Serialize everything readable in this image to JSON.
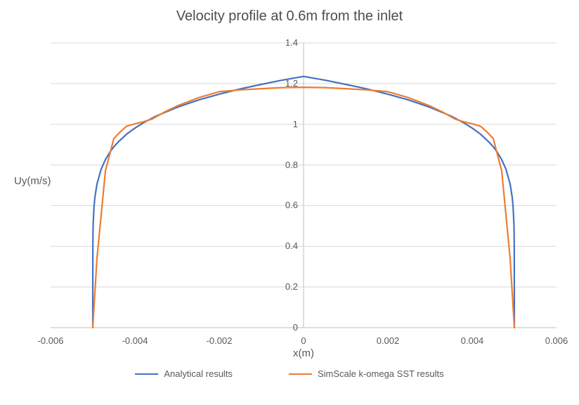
{
  "colors": {
    "background": "#FFFFFF",
    "grid": "#D9D9D9",
    "axis": "#BFBFBF",
    "tick_text": "#595959",
    "title_text": "#4D4D4D",
    "series_blue": "#4472C4",
    "series_orange": "#ED7D31"
  },
  "chart_data": {
    "type": "line",
    "title": "Velocity profile at 0.6m from the inlet",
    "xlabel": "x(m)",
    "ylabel": "Uy(m/s)",
    "xlim": [
      -0.006,
      0.006
    ],
    "ylim": [
      0,
      1.4
    ],
    "axis_cross_x": 0,
    "grid": "horizontal-major",
    "legend_position": "bottom-center",
    "x_ticks": [
      "-0.006",
      "-0.004",
      "-0.002",
      "0",
      "0.002",
      "0.004",
      "0.006"
    ],
    "y_ticks": [
      "0",
      "0.2",
      "0.4",
      "0.6",
      "0.8",
      "1",
      "1.2",
      "1.4"
    ],
    "series": [
      {
        "name": "Analytical results",
        "color": "#4472C4",
        "points": [
          [
            -0.005,
            0
          ],
          [
            -0.004999,
            0.366
          ],
          [
            -0.004995,
            0.46
          ],
          [
            -0.00499,
            0.508
          ],
          [
            -0.00497,
            0.595
          ],
          [
            -0.00495,
            0.64
          ],
          [
            -0.0049,
            0.706
          ],
          [
            -0.0048,
            0.78
          ],
          [
            -0.0047,
            0.826
          ],
          [
            -0.0046,
            0.861
          ],
          [
            -0.0045,
            0.889
          ],
          [
            -0.0044,
            0.912
          ],
          [
            -0.0042,
            0.951
          ],
          [
            -0.004,
            0.981
          ],
          [
            -0.0038,
            1.007
          ],
          [
            -0.0035,
            1.04
          ],
          [
            -0.003,
            1.083
          ],
          [
            -0.0025,
            1.119
          ],
          [
            -0.002,
            1.148
          ],
          [
            -0.0015,
            1.174
          ],
          [
            -0.001,
            1.196
          ],
          [
            -0.0005,
            1.217
          ],
          [
            0,
            1.235
          ],
          [
            0.0005,
            1.217
          ],
          [
            0.001,
            1.196
          ],
          [
            0.0015,
            1.174
          ],
          [
            0.002,
            1.148
          ],
          [
            0.0025,
            1.119
          ],
          [
            0.003,
            1.083
          ],
          [
            0.0035,
            1.04
          ],
          [
            0.0038,
            1.007
          ],
          [
            0.004,
            0.981
          ],
          [
            0.0042,
            0.951
          ],
          [
            0.0044,
            0.912
          ],
          [
            0.0045,
            0.889
          ],
          [
            0.0046,
            0.861
          ],
          [
            0.0047,
            0.826
          ],
          [
            0.0048,
            0.78
          ],
          [
            0.0049,
            0.706
          ],
          [
            0.00495,
            0.64
          ],
          [
            0.00497,
            0.595
          ],
          [
            0.00499,
            0.508
          ],
          [
            0.004995,
            0.46
          ],
          [
            0.004999,
            0.366
          ],
          [
            0.005,
            0
          ]
        ]
      },
      {
        "name": "SimScale k-omega SST results",
        "color": "#ED7D31",
        "points": [
          [
            -0.005,
            0
          ],
          [
            -0.0049,
            0.34
          ],
          [
            -0.0047,
            0.77
          ],
          [
            -0.0045,
            0.93
          ],
          [
            -0.00435,
            0.962
          ],
          [
            -0.0042,
            0.99
          ],
          [
            -0.004,
            1.002
          ],
          [
            -0.0038,
            1.012
          ],
          [
            -0.0036,
            1.025
          ],
          [
            -0.0033,
            1.06
          ],
          [
            -0.003,
            1.09
          ],
          [
            -0.0025,
            1.13
          ],
          [
            -0.002,
            1.16
          ],
          [
            -0.0015,
            1.169
          ],
          [
            -0.001,
            1.175
          ],
          [
            -0.0005,
            1.18
          ],
          [
            0,
            1.182
          ],
          [
            0.0005,
            1.18
          ],
          [
            0.001,
            1.175
          ],
          [
            0.0015,
            1.169
          ],
          [
            0.002,
            1.16
          ],
          [
            0.0025,
            1.13
          ],
          [
            0.003,
            1.09
          ],
          [
            0.0033,
            1.06
          ],
          [
            0.0036,
            1.025
          ],
          [
            0.0038,
            1.012
          ],
          [
            0.004,
            1.002
          ],
          [
            0.0042,
            0.99
          ],
          [
            0.00435,
            0.962
          ],
          [
            0.0045,
            0.93
          ],
          [
            0.0047,
            0.77
          ],
          [
            0.0049,
            0.34
          ],
          [
            0.005,
            0
          ]
        ]
      }
    ]
  }
}
